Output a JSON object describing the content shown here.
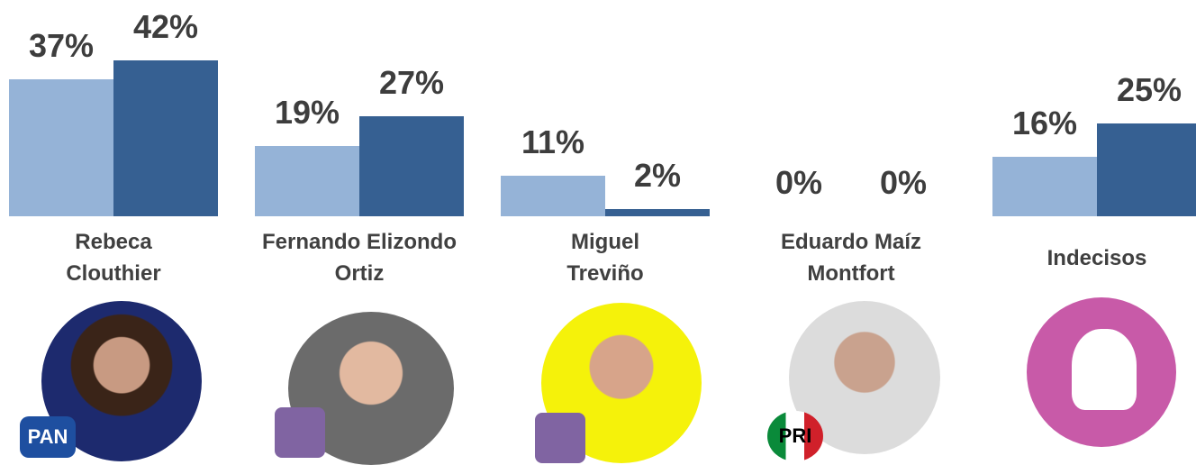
{
  "chart_data": {
    "type": "bar",
    "categories": [
      "Rebeca Clouthier",
      "Fernando Elizondo Ortiz",
      "Miguel Treviño",
      "Eduardo Maíz Montfort",
      "Indecisos"
    ],
    "series": [
      {
        "color": "#95b3d7",
        "values": [
          37,
          19,
          11,
          0,
          16
        ],
        "value_labels": [
          "37%",
          "19%",
          "11%",
          "0%",
          "16%"
        ]
      },
      {
        "color": "#366092",
        "values": [
          42,
          27,
          2,
          0,
          25
        ],
        "value_labels": [
          "42%",
          "27%",
          "2%",
          "0%",
          "25%"
        ]
      }
    ]
  },
  "party_logos": [
    "PAN",
    "PRI"
  ]
}
